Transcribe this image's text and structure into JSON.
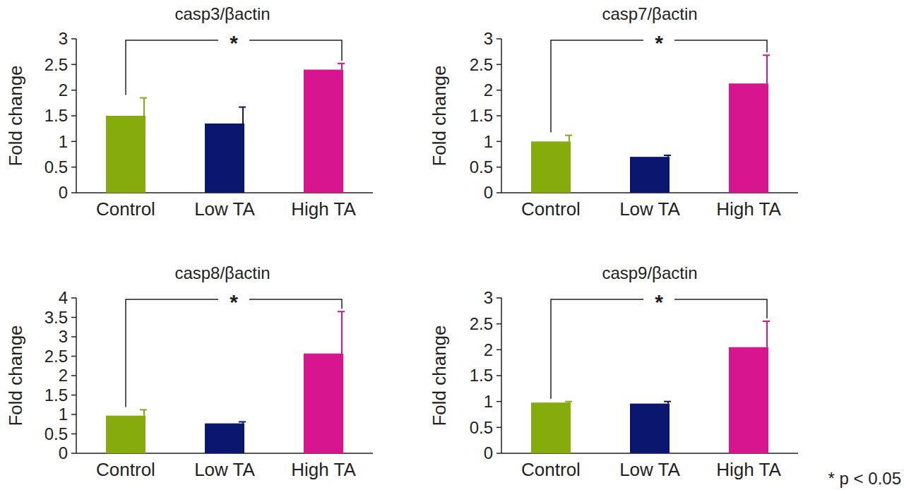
{
  "chart_data": [
    {
      "type": "bar",
      "title": "casp3/βactin",
      "y_label": "Fold change",
      "categories": [
        "Control",
        "Low TA",
        "High TA"
      ],
      "values": [
        1.5,
        1.35,
        2.4
      ],
      "errors": [
        0.35,
        0.32,
        0.12
      ],
      "colors": [
        "#86ab0d",
        "#0b176e",
        "#d6158e"
      ],
      "ylim": [
        0,
        3
      ],
      "yticks": [
        0,
        0.5,
        1,
        1.5,
        2,
        2.5,
        3
      ],
      "annotations": [
        {
          "text": "*",
          "between": [
            "Control",
            "High TA"
          ]
        }
      ]
    },
    {
      "type": "bar",
      "title": "casp7/βactin",
      "y_label": "Fold change",
      "categories": [
        "Control",
        "Low TA",
        "High TA"
      ],
      "values": [
        1.0,
        0.7,
        2.13
      ],
      "errors": [
        0.12,
        0.03,
        0.55
      ],
      "colors": [
        "#86ab0d",
        "#0b176e",
        "#d6158e"
      ],
      "ylim": [
        0,
        3
      ],
      "yticks": [
        0,
        0.5,
        1,
        1.5,
        2,
        2.5,
        3
      ],
      "annotations": [
        {
          "text": "*",
          "between": [
            "Control",
            "High TA"
          ]
        }
      ]
    },
    {
      "type": "bar",
      "title": "casp8/βactin",
      "y_label": "Fold change",
      "categories": [
        "Control",
        "Low TA",
        "High TA"
      ],
      "values": [
        0.97,
        0.77,
        2.57
      ],
      "errors": [
        0.15,
        0.04,
        1.08
      ],
      "colors": [
        "#86ab0d",
        "#0b176e",
        "#d6158e"
      ],
      "ylim": [
        0,
        4
      ],
      "yticks": [
        0,
        0.5,
        1,
        1.5,
        2,
        2.5,
        3,
        3.5,
        4
      ],
      "annotations": [
        {
          "text": "*",
          "between": [
            "Control",
            "High TA"
          ]
        }
      ]
    },
    {
      "type": "bar",
      "title": "casp9/βactin",
      "y_label": "Fold change",
      "categories": [
        "Control",
        "Low TA",
        "High TA"
      ],
      "values": [
        0.98,
        0.96,
        2.05
      ],
      "errors": [
        0.02,
        0.04,
        0.5
      ],
      "colors": [
        "#86ab0d",
        "#0b176e",
        "#d6158e"
      ],
      "ylim": [
        0,
        3
      ],
      "yticks": [
        0,
        0.5,
        1,
        1.5,
        2,
        2.5,
        3
      ],
      "annotations": [
        {
          "text": "*",
          "between": [
            "Control",
            "High TA"
          ]
        }
      ]
    }
  ],
  "footnote": "* p < 0.05"
}
